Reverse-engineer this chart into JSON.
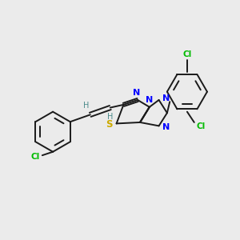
{
  "background_color": "#ebebeb",
  "bond_color": "#1a1a1a",
  "N_color": "#0000ff",
  "S_color": "#ccaa00",
  "Cl_color": "#00bb00",
  "H_color": "#4a8a8a",
  "figsize": [
    3.0,
    3.0
  ],
  "dpi": 100,
  "xlim": [
    0,
    10
  ],
  "ylim": [
    0,
    10
  ]
}
